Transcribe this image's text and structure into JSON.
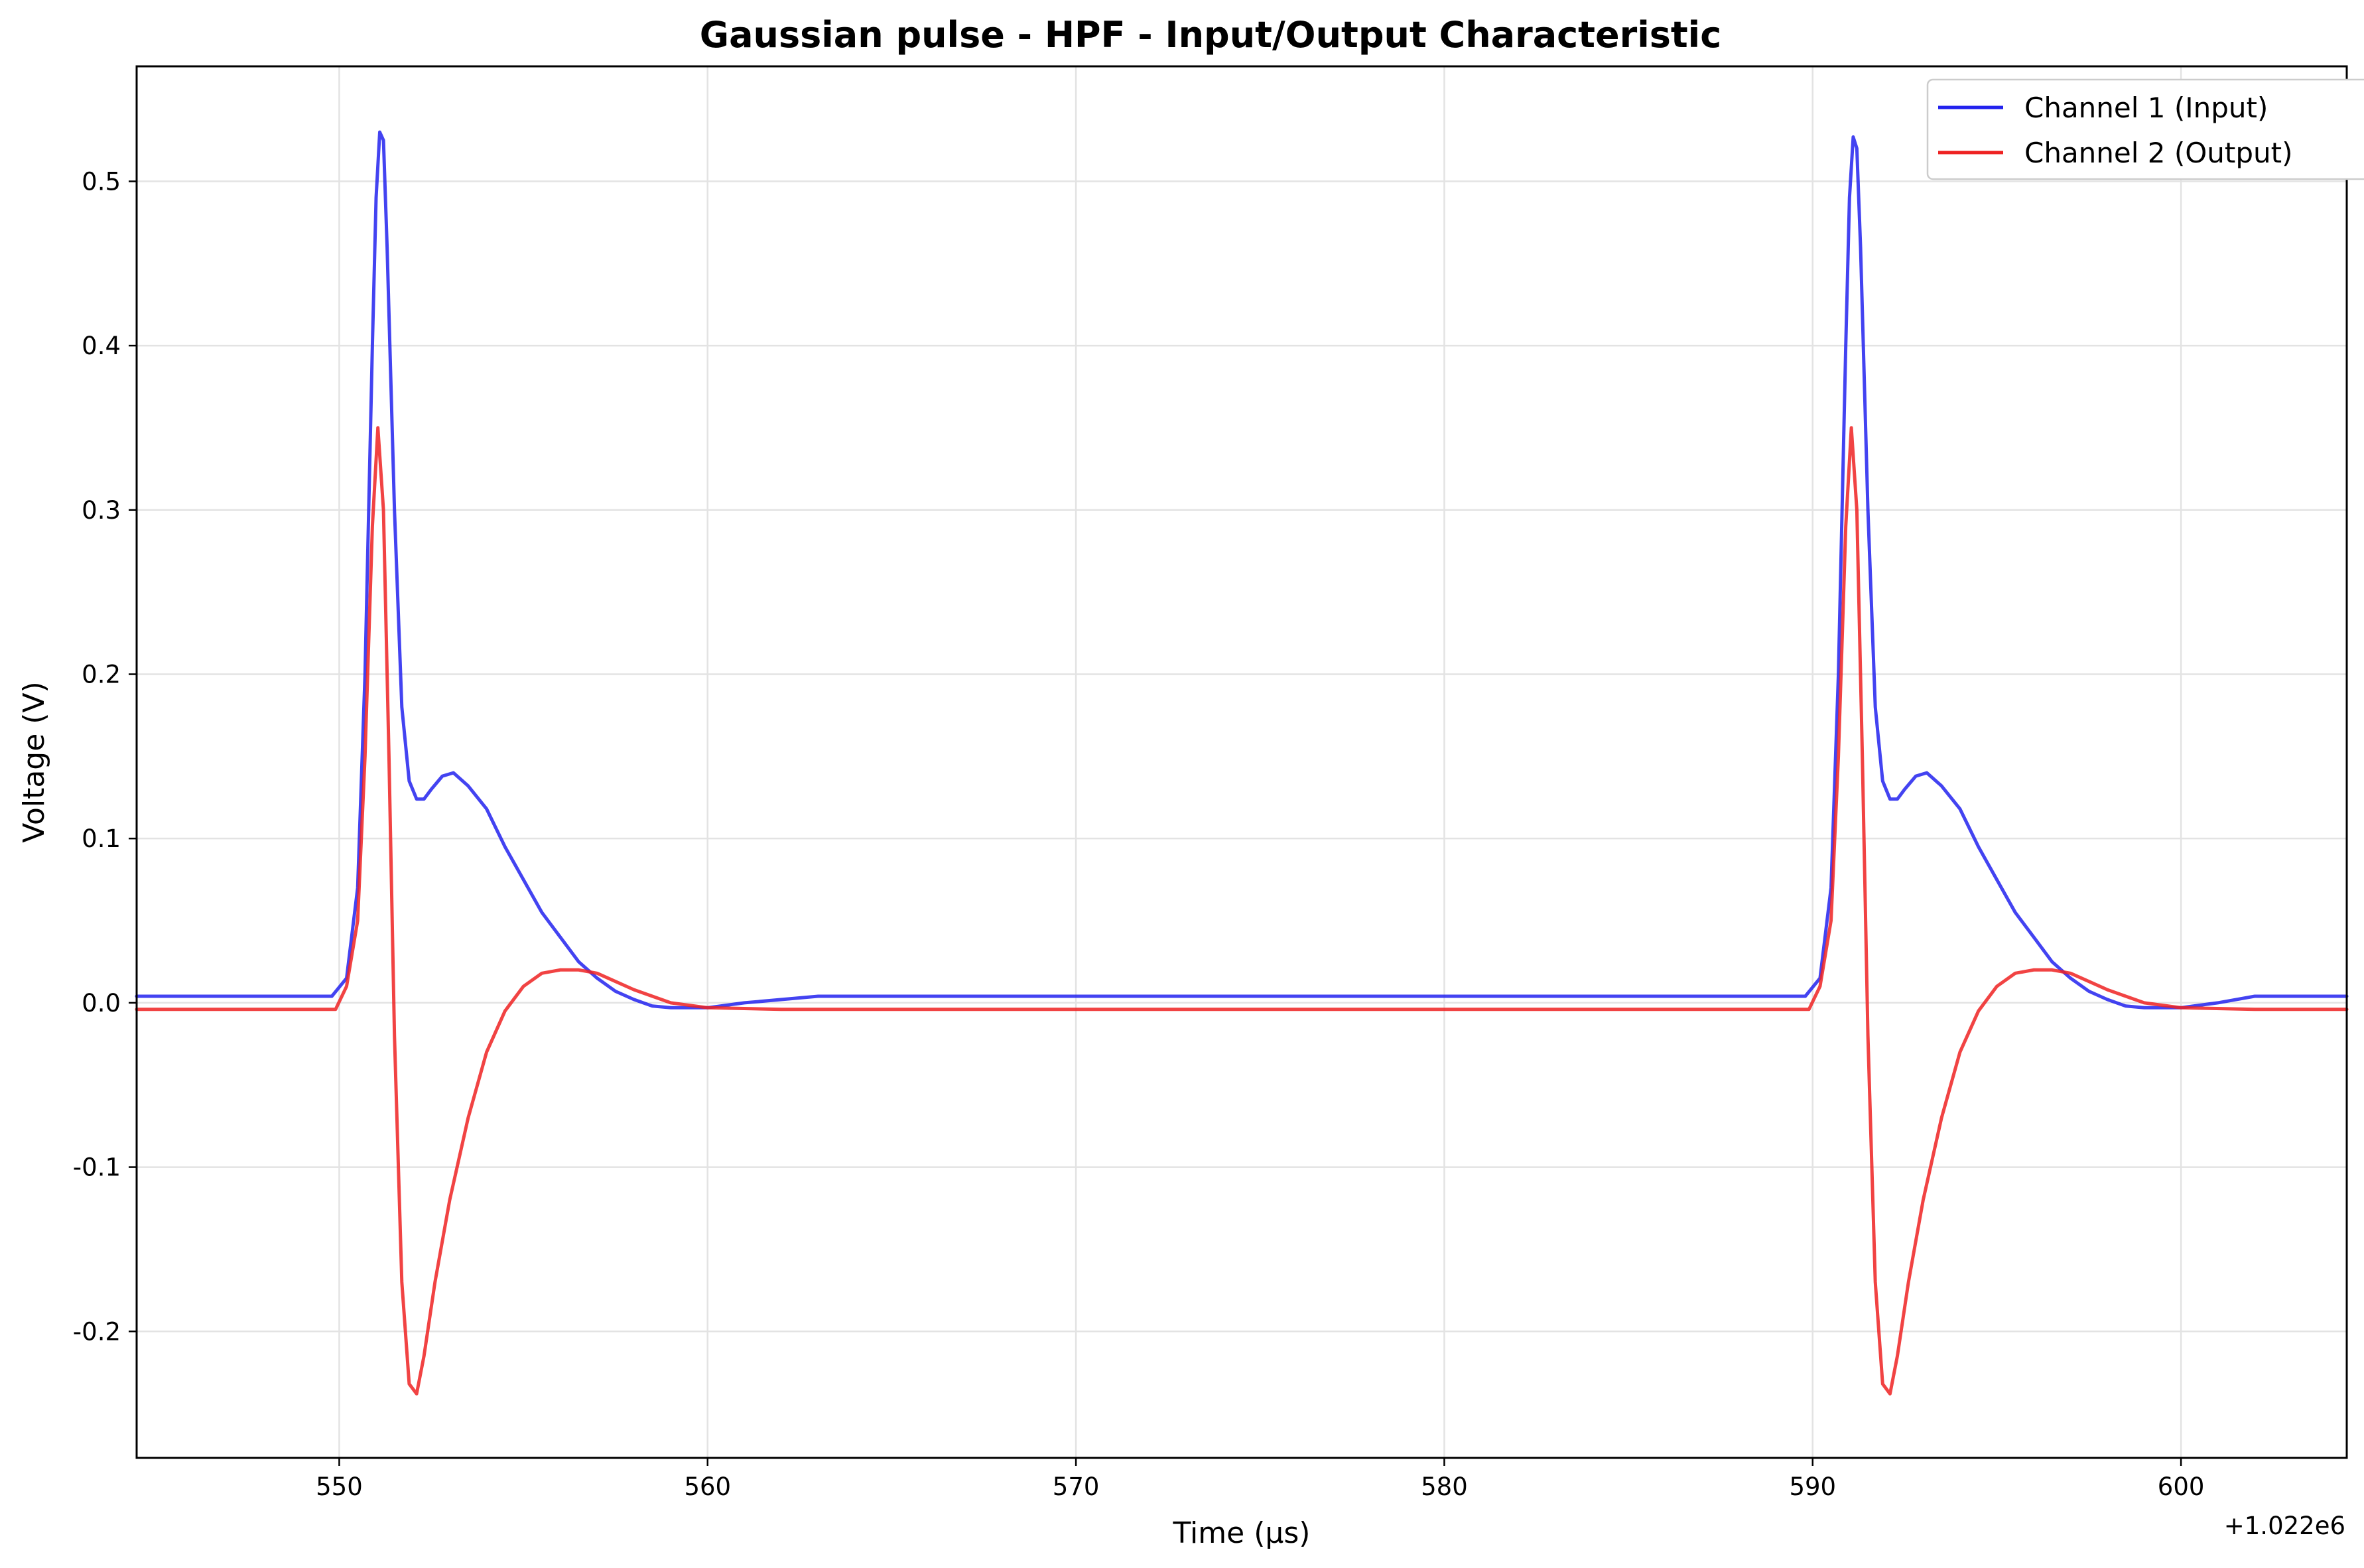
{
  "chart_data": {
    "type": "line",
    "title": "Gaussian pulse - HPF - Input/Output Characteristic",
    "xlabel": "Time (µs)",
    "ylabel": "Voltage (V)",
    "x_offset_label": "+1.022e6",
    "xlim": [
      544.5,
      604.5
    ],
    "ylim": [
      -0.277,
      0.57
    ],
    "x_ticks": [
      550,
      560,
      570,
      580,
      590,
      600
    ],
    "x_tick_labels": [
      "550",
      "560",
      "570",
      "580",
      "590",
      "600"
    ],
    "y_ticks": [
      -0.2,
      -0.1,
      0.0,
      0.1,
      0.2,
      0.3,
      0.4,
      0.5
    ],
    "y_tick_labels": [
      "-0.2",
      "-0.1",
      "0.0",
      "0.1",
      "0.2",
      "0.3",
      "0.4",
      "0.5"
    ],
    "grid": true,
    "legend_position": "top-right",
    "series": [
      {
        "name": "Channel 1 (Input)",
        "color": "#2222ee",
        "x": [
          544.5,
          549.8,
          550.2,
          550.5,
          550.7,
          550.9,
          551.0,
          551.1,
          551.2,
          551.3,
          551.5,
          551.7,
          551.9,
          552.1,
          552.3,
          552.5,
          552.8,
          553.1,
          553.5,
          554.0,
          554.5,
          555.0,
          555.5,
          556.0,
          556.5,
          557.0,
          557.5,
          558.0,
          558.5,
          559.0,
          560.0,
          561.0,
          563.0,
          570.0,
          580.0,
          589.8,
          590.2,
          590.5,
          590.7,
          590.9,
          591.0,
          591.1,
          591.2,
          591.3,
          591.5,
          591.7,
          591.9,
          592.1,
          592.3,
          592.5,
          592.8,
          593.1,
          593.5,
          594.0,
          594.5,
          595.0,
          595.5,
          596.0,
          596.5,
          597.0,
          597.5,
          598.0,
          598.5,
          599.0,
          600.0,
          601.0,
          602.0,
          604.5
        ],
        "y": [
          0.004,
          0.004,
          0.015,
          0.07,
          0.2,
          0.4,
          0.49,
          0.53,
          0.525,
          0.46,
          0.3,
          0.18,
          0.135,
          0.124,
          0.124,
          0.13,
          0.138,
          0.14,
          0.132,
          0.118,
          0.095,
          0.075,
          0.055,
          0.04,
          0.025,
          0.015,
          0.007,
          0.002,
          -0.002,
          -0.003,
          -0.003,
          0.0,
          0.004,
          0.004,
          0.004,
          0.004,
          0.015,
          0.07,
          0.2,
          0.4,
          0.49,
          0.527,
          0.52,
          0.46,
          0.3,
          0.18,
          0.135,
          0.124,
          0.124,
          0.13,
          0.138,
          0.14,
          0.132,
          0.118,
          0.095,
          0.075,
          0.055,
          0.04,
          0.025,
          0.015,
          0.007,
          0.002,
          -0.002,
          -0.003,
          -0.003,
          0.0,
          0.004,
          0.004
        ]
      },
      {
        "name": "Channel 2 (Output)",
        "color": "#ee2222",
        "x": [
          544.5,
          549.9,
          550.2,
          550.5,
          550.7,
          550.9,
          551.05,
          551.2,
          551.35,
          551.5,
          551.7,
          551.9,
          552.1,
          552.3,
          552.6,
          553.0,
          553.5,
          554.0,
          554.5,
          555.0,
          555.5,
          556.0,
          556.5,
          557.0,
          557.5,
          558.0,
          558.5,
          559.0,
          560.0,
          562.0,
          570.0,
          580.0,
          589.9,
          590.2,
          590.5,
          590.7,
          590.9,
          591.05,
          591.2,
          591.35,
          591.5,
          591.7,
          591.9,
          592.1,
          592.3,
          592.6,
          593.0,
          593.5,
          594.0,
          594.5,
          595.0,
          595.5,
          596.0,
          596.5,
          597.0,
          597.5,
          598.0,
          598.5,
          599.0,
          600.0,
          602.0,
          604.5
        ],
        "y": [
          -0.004,
          -0.004,
          0.01,
          0.05,
          0.15,
          0.29,
          0.35,
          0.3,
          0.15,
          -0.02,
          -0.17,
          -0.232,
          -0.238,
          -0.215,
          -0.17,
          -0.12,
          -0.07,
          -0.03,
          -0.005,
          0.01,
          0.018,
          0.02,
          0.02,
          0.018,
          0.013,
          0.008,
          0.004,
          0.0,
          -0.003,
          -0.004,
          -0.004,
          -0.004,
          -0.004,
          0.01,
          0.05,
          0.15,
          0.29,
          0.35,
          0.3,
          0.15,
          -0.02,
          -0.17,
          -0.232,
          -0.238,
          -0.215,
          -0.17,
          -0.12,
          -0.07,
          -0.03,
          -0.005,
          0.01,
          0.018,
          0.02,
          0.02,
          0.018,
          0.013,
          0.008,
          0.004,
          0.0,
          -0.003,
          -0.004,
          -0.004
        ]
      }
    ]
  }
}
